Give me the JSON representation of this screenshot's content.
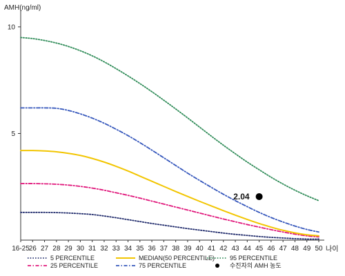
{
  "chart_data": {
    "type": "line",
    "ylabel": "AMH(ng/ml)",
    "xlabel": "나이",
    "yticks": [
      5,
      10
    ],
    "ylim": [
      0,
      11
    ],
    "x": [
      "16-25",
      "26",
      "27",
      "28",
      "29",
      "30",
      "31",
      "32",
      "33",
      "34",
      "35",
      "36",
      "37",
      "38",
      "39",
      "40",
      "41",
      "42",
      "43",
      "44",
      "45",
      "46",
      "47",
      "48",
      "49",
      "50"
    ],
    "series": [
      {
        "name": "5 PERCENTILE",
        "color": "#1f2a6b",
        "dash": "dot",
        "values": [
          1.3,
          1.3,
          1.3,
          1.29,
          1.27,
          1.24,
          1.2,
          1.13,
          1.05,
          0.96,
          0.87,
          0.78,
          0.7,
          0.62,
          0.54,
          0.47,
          0.4,
          0.33,
          0.27,
          0.22,
          0.17,
          0.13,
          0.1,
          0.07,
          0.05,
          0.05
        ]
      },
      {
        "name": "25 PERCENTILE",
        "color": "#e0157a",
        "dash": "dashdot",
        "values": [
          2.65,
          2.65,
          2.64,
          2.62,
          2.58,
          2.52,
          2.44,
          2.34,
          2.22,
          2.1,
          1.97,
          1.83,
          1.69,
          1.55,
          1.41,
          1.27,
          1.13,
          0.99,
          0.86,
          0.73,
          0.61,
          0.49,
          0.38,
          0.28,
          0.2,
          0.15
        ]
      },
      {
        "name": "MEDIAN(50 PERCENTILE)",
        "color": "#f2c500",
        "dash": "solid",
        "values": [
          4.2,
          4.2,
          4.18,
          4.14,
          4.07,
          3.97,
          3.83,
          3.66,
          3.46,
          3.24,
          3.0,
          2.76,
          2.52,
          2.28,
          2.05,
          1.82,
          1.6,
          1.38,
          1.17,
          0.97,
          0.78,
          0.61,
          0.46,
          0.34,
          0.25,
          0.2
        ]
      },
      {
        "name": "75 PERCENTILE",
        "color": "#3355bb",
        "dash": "dashdot",
        "values": [
          6.2,
          6.2,
          6.2,
          6.18,
          6.08,
          5.92,
          5.72,
          5.48,
          5.2,
          4.9,
          4.57,
          4.22,
          3.86,
          3.5,
          3.14,
          2.8,
          2.47,
          2.15,
          1.85,
          1.57,
          1.3,
          1.06,
          0.85,
          0.66,
          0.5,
          0.38
        ]
      },
      {
        "name": "95 PERCENTILE",
        "color": "#2e8b57",
        "dash": "dot",
        "values": [
          9.5,
          9.45,
          9.36,
          9.24,
          9.08,
          8.88,
          8.64,
          8.36,
          8.04,
          7.7,
          7.34,
          6.96,
          6.56,
          6.15,
          5.73,
          5.3,
          4.87,
          4.45,
          4.05,
          3.66,
          3.3,
          2.95,
          2.63,
          2.34,
          2.08,
          1.85
        ]
      }
    ],
    "patient_point": {
      "x": "45",
      "value": 2.04,
      "label": "2.04"
    },
    "legend": {
      "position": "bottom",
      "items": [
        {
          "label": "5 PERCENTILE",
          "color": "#1f2a6b",
          "dash": "dot",
          "kind": "line"
        },
        {
          "label": "25 PERCENTILE",
          "color": "#e0157a",
          "dash": "dashdot",
          "kind": "line"
        },
        {
          "label": "MEDIAN(50 PERCENTILE)",
          "color": "#f2c500",
          "dash": "solid",
          "kind": "line"
        },
        {
          "label": "75 PERCENTILE",
          "color": "#3355bb",
          "dash": "dashdot",
          "kind": "line"
        },
        {
          "label": "95 PERCENTILE",
          "color": "#2e8b57",
          "dash": "dot",
          "kind": "line"
        },
        {
          "label": "수진자의 AMH 농도",
          "color": "#000000",
          "kind": "marker"
        }
      ]
    },
    "grid": false
  }
}
